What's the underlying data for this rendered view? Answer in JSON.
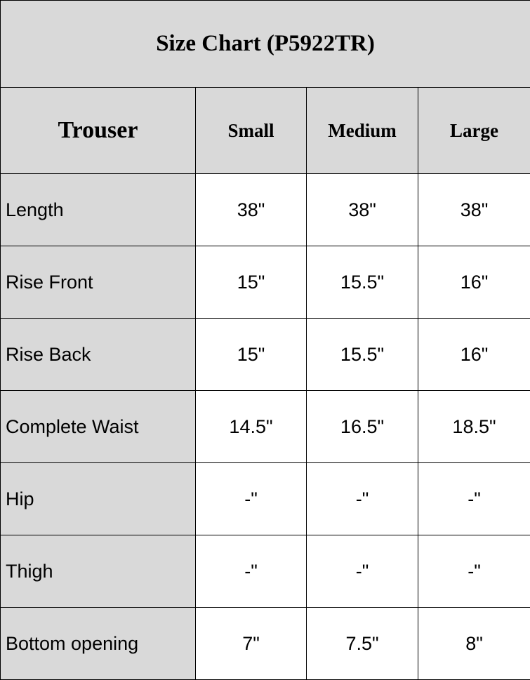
{
  "title": "Size Chart (P5922TR)",
  "header": {
    "label": "Trouser",
    "sizes": [
      "Small",
      "Medium",
      "Large"
    ]
  },
  "rows": [
    {
      "label": "Length",
      "values": [
        "38\"",
        "38\"",
        "38\""
      ]
    },
    {
      "label": "Rise Front",
      "values": [
        "15\"",
        "15.5\"",
        "16\""
      ]
    },
    {
      "label": "Rise Back",
      "values": [
        "15\"",
        "15.5\"",
        "16\""
      ]
    },
    {
      "label": "Complete Waist",
      "values": [
        "14.5\"",
        "16.5\"",
        "18.5\""
      ]
    },
    {
      "label": "Hip",
      "values": [
        "-\"",
        "-\"",
        "-\""
      ]
    },
    {
      "label": "Thigh",
      "values": [
        "-\"",
        "-\"",
        "-\""
      ]
    },
    {
      "label": "Bottom opening",
      "values": [
        "7\"",
        "7.5\"",
        "8\""
      ]
    }
  ],
  "colors": {
    "header_bg": "#d9d9d9",
    "cell_bg": "#ffffff",
    "border": "#000000"
  }
}
